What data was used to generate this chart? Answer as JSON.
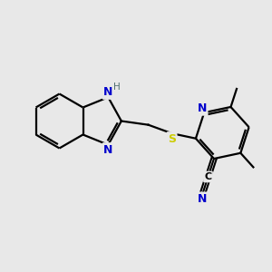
{
  "bg_color": "#e8e8e8",
  "atom_color_N": "#0000cc",
  "atom_color_S": "#cccc00",
  "atom_color_H": "#507070",
  "bond_color": "#000000",
  "bond_width": 1.6,
  "figsize": [
    3.0,
    3.0
  ],
  "dpi": 100,
  "xlim": [
    0,
    10
  ],
  "ylim": [
    0,
    10
  ]
}
